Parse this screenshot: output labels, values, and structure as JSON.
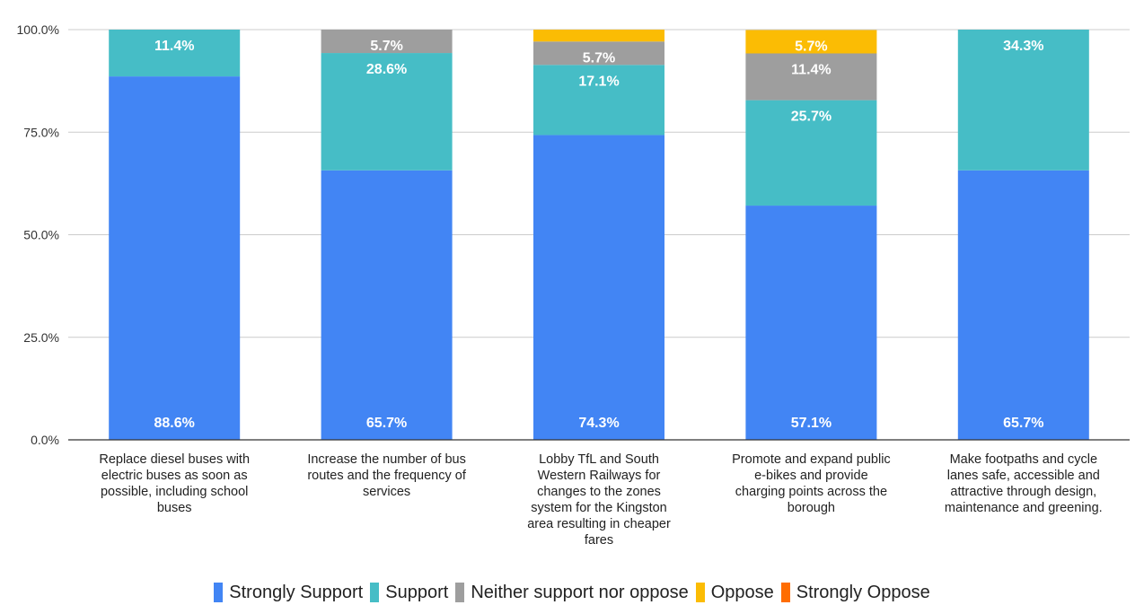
{
  "chart_data": {
    "type": "bar",
    "stacked": true,
    "categories": [
      "Replace diesel buses with electric buses as soon as possible, including school buses",
      "Increase the number of bus routes and the frequency of services",
      "Lobby TfL and South Western Railways for changes to the zones system for the Kingston area resulting in cheaper fares",
      "Promote and expand public e-bikes and provide charging points across the borough",
      "Make footpaths and cycle lanes safe, accessible and attractive through design, maintenance and greening."
    ],
    "category_lines": [
      [
        "Replace diesel buses with",
        "electric buses as soon as",
        "possible, including school",
        "buses"
      ],
      [
        "Increase the number of bus",
        "routes and the frequency of",
        "services"
      ],
      [
        "Lobby TfL and South",
        "Western Railways for",
        "changes to the zones",
        "system for the Kingston",
        "area resulting in cheaper",
        "fares"
      ],
      [
        "Promote and expand public",
        "e-bikes and provide",
        "charging points across the",
        "borough"
      ],
      [
        "Make footpaths and cycle",
        "lanes safe, accessible and",
        "attractive through design,",
        "maintenance and greening."
      ]
    ],
    "series": [
      {
        "name": "Strongly Support",
        "color": "#4285f4",
        "label_color": "#ffffff",
        "values": [
          88.6,
          65.7,
          74.3,
          57.1,
          65.7
        ]
      },
      {
        "name": "Support",
        "color": "#46bdc6",
        "label_color": "#ffffff",
        "values": [
          11.4,
          28.6,
          17.1,
          25.7,
          34.3
        ]
      },
      {
        "name": "Neither support nor oppose",
        "color": "#9e9e9e",
        "label_color": "#ffffff",
        "values": [
          0,
          5.7,
          5.7,
          11.4,
          0
        ]
      },
      {
        "name": "Oppose",
        "color": "#fbbc04",
        "label_color": "#ffffff",
        "values": [
          0,
          0,
          2.9,
          5.7,
          0
        ]
      },
      {
        "name": "Strongly Oppose",
        "color": "#ff6d01",
        "label_color": "#ffffff",
        "values": [
          0,
          0,
          0,
          0,
          0
        ]
      }
    ],
    "yticks": [
      "0.0%",
      "25.0%",
      "50.0%",
      "75.0%",
      "100.0%"
    ],
    "ylim": [
      0,
      100
    ],
    "grid": true,
    "legend_position": "bottom",
    "title": "",
    "xlabel": "",
    "ylabel": ""
  }
}
